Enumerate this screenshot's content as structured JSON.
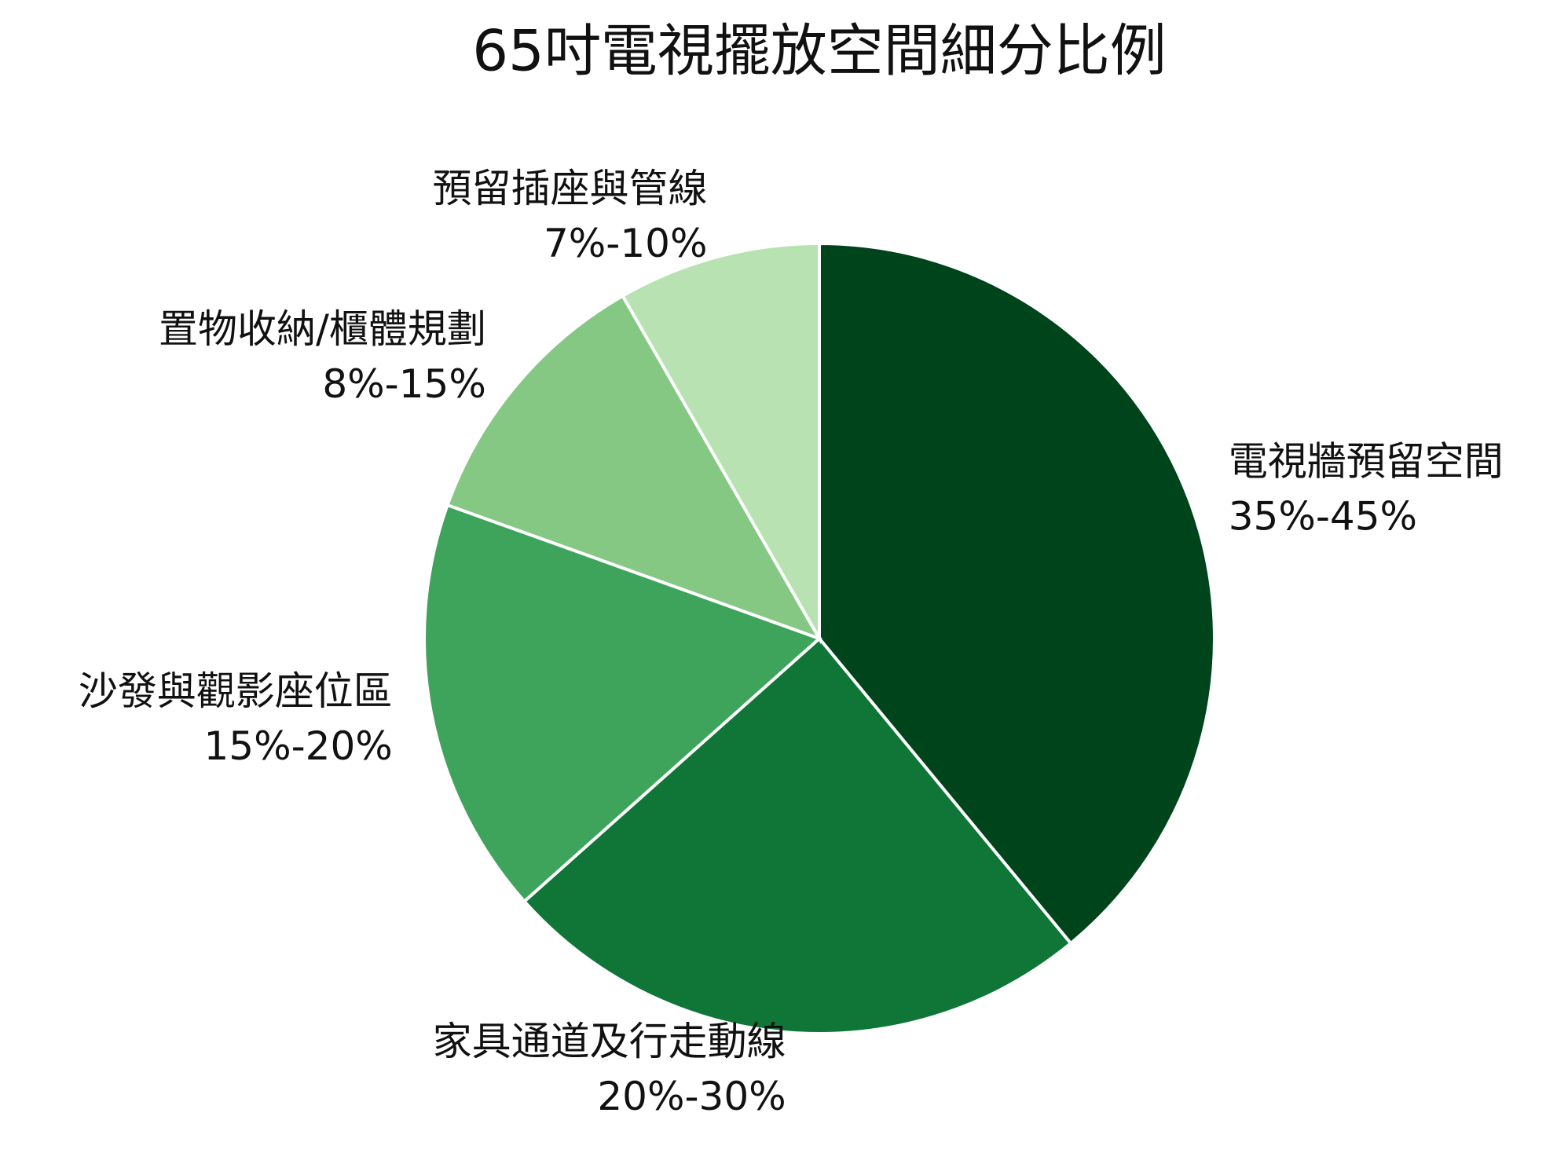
{
  "chart_data": {
    "type": "pie",
    "title": "65吋電視擺放空間細分比例",
    "categories": [
      "電視牆預留空間",
      "家具通道及行走動線",
      "沙發與觀影座位區",
      "置物收納/櫃體規劃",
      "預留插座與管線"
    ],
    "values": [
      40,
      25,
      17.5,
      11.5,
      8.5
    ],
    "value_labels": [
      "35%-45%",
      "20%-30%",
      "15%-20%",
      "8%-15%",
      "7%-10%"
    ],
    "colors": [
      "#00441b",
      "#107637",
      "#3fa45b",
      "#84c884",
      "#b8e2b2"
    ]
  }
}
